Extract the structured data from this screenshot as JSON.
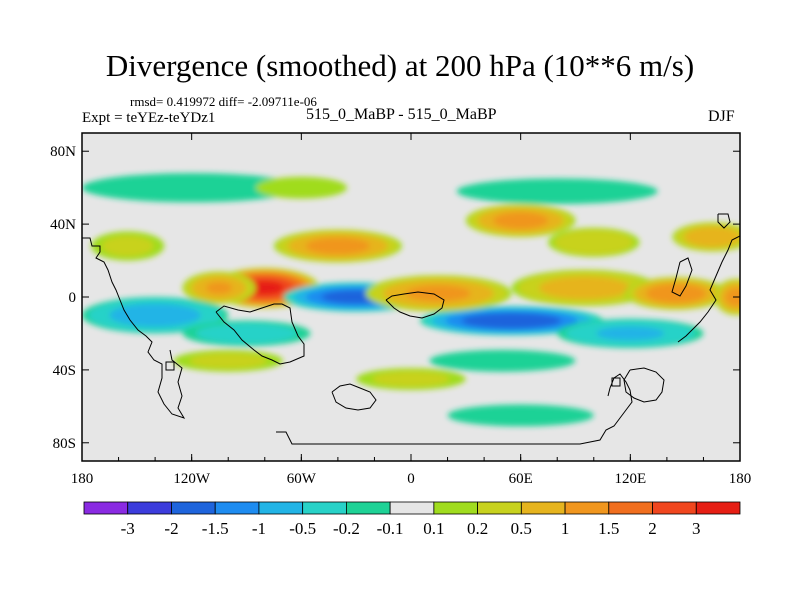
{
  "header": {
    "title": "Divergence (smoothed) at 200 hPa (10**6 m/s)",
    "rmsd_text": "rmsd= 0.419972 diff= -2.09711e-06",
    "experiment_text": "Expt = teYEz-teYDz1",
    "center_text": "515_0_MaBP - 515_0_MaBP",
    "season": "DJF"
  },
  "chart_data": {
    "type": "heatmap",
    "title": "Divergence (smoothed) at 200 hPa (10**6 m/s)",
    "units": "10**6 m/s",
    "level": "200 hPa",
    "season": "DJF",
    "xlabel": "",
    "ylabel": "",
    "x_range": [
      -180,
      180
    ],
    "y_range": [
      -90,
      90
    ],
    "x_ticks": [
      {
        "value": -180,
        "label": "180"
      },
      {
        "value": -120,
        "label": "120W"
      },
      {
        "value": -60,
        "label": "60W"
      },
      {
        "value": 0,
        "label": "0"
      },
      {
        "value": 60,
        "label": "60E"
      },
      {
        "value": 120,
        "label": "120E"
      },
      {
        "value": 180,
        "label": "180"
      }
    ],
    "y_ticks": [
      {
        "value": 80,
        "label": "80N"
      },
      {
        "value": 40,
        "label": "40N"
      },
      {
        "value": 0,
        "label": "0"
      },
      {
        "value": -40,
        "label": "40S"
      },
      {
        "value": -80,
        "label": "80S"
      }
    ],
    "colorbar": {
      "labels": [
        "-3",
        "-2",
        "-1.5",
        "-1",
        "-0.5",
        "-0.2",
        "-0.1",
        "0.1",
        "0.2",
        "0.5",
        "1",
        "1.5",
        "2",
        "3"
      ],
      "colors": [
        "#8a2be2",
        "#3c3cdc",
        "#1e64dc",
        "#1e8cf0",
        "#22b4e6",
        "#28d2c8",
        "#1ed296",
        "#e6e6e6",
        "#a0dc1e",
        "#c8d21e",
        "#e6b41e",
        "#f0961e",
        "#f06e1e",
        "#f0461e",
        "#e61e14"
      ]
    },
    "features": [
      {
        "lon": -80,
        "lat": 5,
        "rx": 30,
        "ry": 11,
        "value": 3.2
      },
      {
        "lon": -105,
        "lat": 5,
        "rx": 20,
        "ry": 9,
        "value": 1.2
      },
      {
        "lon": -30,
        "lat": 0,
        "rx": 40,
        "ry": 8,
        "value": -2.0
      },
      {
        "lon": 55,
        "lat": -13,
        "rx": 50,
        "ry": 8,
        "value": -2.2
      },
      {
        "lon": 15,
        "lat": 2,
        "rx": 40,
        "ry": 10,
        "value": 1.3
      },
      {
        "lon": 95,
        "lat": 5,
        "rx": 40,
        "ry": 10,
        "value": 0.9
      },
      {
        "lon": 145,
        "lat": 2,
        "rx": 28,
        "ry": 9,
        "value": 1.6
      },
      {
        "lon": 178,
        "lat": 0,
        "rx": 12,
        "ry": 10,
        "value": 1.4
      },
      {
        "lon": -40,
        "lat": 28,
        "rx": 35,
        "ry": 9,
        "value": 1.4
      },
      {
        "lon": 60,
        "lat": 42,
        "rx": 30,
        "ry": 9,
        "value": 1.4
      },
      {
        "lon": 100,
        "lat": 30,
        "rx": 25,
        "ry": 8,
        "value": 0.6
      },
      {
        "lon": 165,
        "lat": 33,
        "rx": 22,
        "ry": 8,
        "value": 1.1
      },
      {
        "lon": -140,
        "lat": -10,
        "rx": 40,
        "ry": 10,
        "value": -0.9
      },
      {
        "lon": -90,
        "lat": -20,
        "rx": 35,
        "ry": 7,
        "value": -0.4
      },
      {
        "lon": 120,
        "lat": -20,
        "rx": 40,
        "ry": 8,
        "value": -0.7
      },
      {
        "lon": -120,
        "lat": 60,
        "rx": 60,
        "ry": 8,
        "value": -0.15
      },
      {
        "lon": 80,
        "lat": 58,
        "rx": 55,
        "ry": 7,
        "value": -0.15
      },
      {
        "lon": -155,
        "lat": 28,
        "rx": 20,
        "ry": 8,
        "value": 0.3
      },
      {
        "lon": -100,
        "lat": -35,
        "rx": 30,
        "ry": 6,
        "value": 0.3
      },
      {
        "lon": 50,
        "lat": -35,
        "rx": 40,
        "ry": 6,
        "value": -0.2
      },
      {
        "lon": 0,
        "lat": -45,
        "rx": 30,
        "ry": 6,
        "value": 0.3
      },
      {
        "lon": 60,
        "lat": -65,
        "rx": 40,
        "ry": 6,
        "value": -0.15
      },
      {
        "lon": -60,
        "lat": 60,
        "rx": 25,
        "ry": 6,
        "value": 0.2
      }
    ]
  }
}
